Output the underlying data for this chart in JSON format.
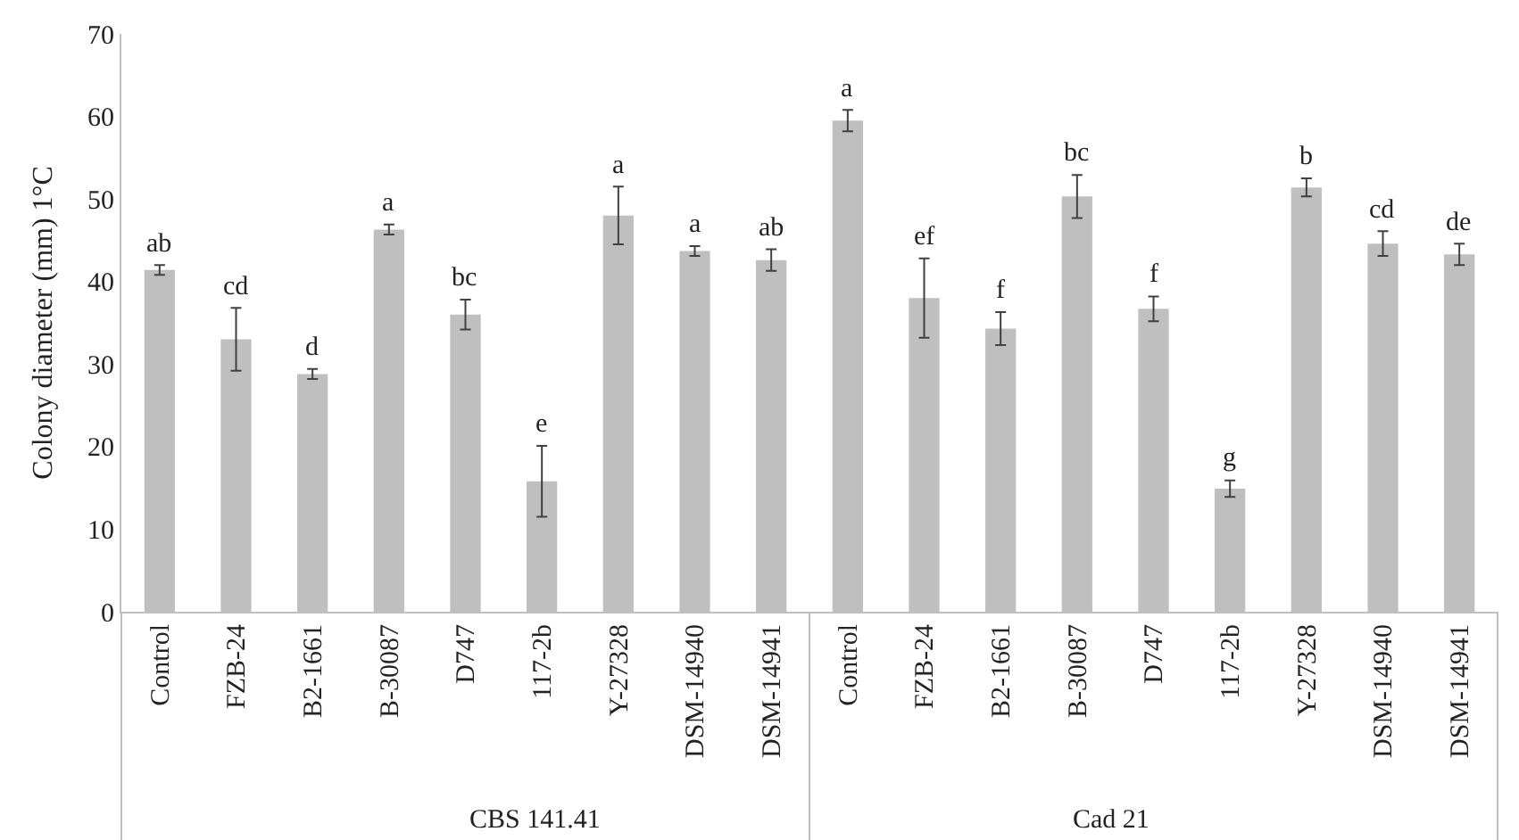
{
  "chart_data": [
    {
      "type": "bar",
      "xlabel": "CBS 141.41",
      "ylabel": "Colony diameter (mm) 1°C",
      "categories": [
        "Control",
        "FZB-24",
        "B2-1661",
        "B-30087",
        "D747",
        "117-2b",
        "Y-27328",
        "DSM-14940",
        "DSM-14941"
      ],
      "series": [
        {
          "color": "#bfbfbf",
          "values": [
            41.4,
            33.0,
            28.8,
            46.3,
            36.0,
            15.8,
            48.0,
            43.7,
            42.6
          ],
          "errors": [
            0.6,
            3.8,
            0.6,
            0.6,
            1.8,
            4.3,
            3.5,
            0.6,
            1.3
          ],
          "value_labels": [
            "ab",
            "cd",
            "d",
            "a",
            "bc",
            "e",
            "a",
            "a",
            "ab"
          ]
        }
      ],
      "ylim": [
        0,
        70
      ],
      "yticks": [
        0,
        10,
        20,
        30,
        40,
        50,
        60,
        70
      ],
      "legend": false
    },
    {
      "type": "bar",
      "xlabel": "Cad 21",
      "categories": [
        "Control",
        "FZB-24",
        "B2-1661",
        "B-30087",
        "D747",
        "117-2b",
        "Y-27328",
        "DSM-14940",
        "DSM-14941"
      ],
      "series": [
        {
          "color": "#bfbfbf",
          "values": [
            59.5,
            38.0,
            34.3,
            50.3,
            36.7,
            14.9,
            51.4,
            44.6,
            43.3
          ],
          "errors": [
            1.3,
            4.8,
            2.0,
            2.6,
            1.5,
            1.0,
            1.1,
            1.5,
            1.3
          ],
          "value_labels": [
            "a",
            "ef",
            "f",
            "bc",
            "f",
            "g",
            "b",
            "cd",
            "de"
          ]
        }
      ],
      "ylim": [
        0,
        70
      ],
      "yticks": [
        0,
        10,
        20,
        30,
        40,
        50,
        60,
        70
      ],
      "legend": false,
      "tick_labels": "x"
    }
  ]
}
